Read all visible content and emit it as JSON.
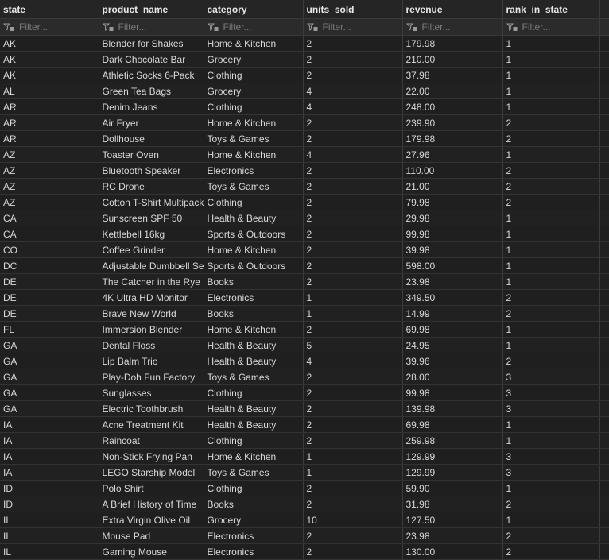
{
  "columns": [
    "state",
    "product_name",
    "category",
    "units_sold",
    "revenue",
    "rank_in_state"
  ],
  "filter": {
    "placeholder": "Filter...",
    "icon": "filter-icon"
  },
  "rows": [
    [
      "AK",
      "Blender for Shakes",
      "Home & Kitchen",
      "2",
      "179.98",
      "1"
    ],
    [
      "AK",
      "Dark Chocolate Bar",
      "Grocery",
      "2",
      "210.00",
      "1"
    ],
    [
      "AK",
      "Athletic Socks 6-Pack",
      "Clothing",
      "2",
      "37.98",
      "1"
    ],
    [
      "AL",
      "Green Tea Bags",
      "Grocery",
      "4",
      "22.00",
      "1"
    ],
    [
      "AR",
      "Denim Jeans",
      "Clothing",
      "4",
      "248.00",
      "1"
    ],
    [
      "AR",
      "Air Fryer",
      "Home & Kitchen",
      "2",
      "239.90",
      "2"
    ],
    [
      "AR",
      "Dollhouse",
      "Toys & Games",
      "2",
      "179.98",
      "2"
    ],
    [
      "AZ",
      "Toaster Oven",
      "Home & Kitchen",
      "4",
      "27.96",
      "1"
    ],
    [
      "AZ",
      "Bluetooth Speaker",
      "Electronics",
      "2",
      "110.00",
      "2"
    ],
    [
      "AZ",
      "RC Drone",
      "Toys & Games",
      "2",
      "21.00",
      "2"
    ],
    [
      "AZ",
      "Cotton T-Shirt Multipack",
      "Clothing",
      "2",
      "79.98",
      "2"
    ],
    [
      "CA",
      "Sunscreen SPF 50",
      "Health & Beauty",
      "2",
      "29.98",
      "1"
    ],
    [
      "CA",
      "Kettlebell 16kg",
      "Sports & Outdoors",
      "2",
      "99.98",
      "1"
    ],
    [
      "CO",
      "Coffee Grinder",
      "Home & Kitchen",
      "2",
      "39.98",
      "1"
    ],
    [
      "DC",
      "Adjustable Dumbbell Set",
      "Sports & Outdoors",
      "2",
      "598.00",
      "1"
    ],
    [
      "DE",
      "The Catcher in the Rye",
      "Books",
      "2",
      "23.98",
      "1"
    ],
    [
      "DE",
      "4K Ultra HD Monitor",
      "Electronics",
      "1",
      "349.50",
      "2"
    ],
    [
      "DE",
      "Brave New World",
      "Books",
      "1",
      "14.99",
      "2"
    ],
    [
      "FL",
      "Immersion Blender",
      "Home & Kitchen",
      "2",
      "69.98",
      "1"
    ],
    [
      "GA",
      "Dental Floss",
      "Health & Beauty",
      "5",
      "24.95",
      "1"
    ],
    [
      "GA",
      "Lip Balm Trio",
      "Health & Beauty",
      "4",
      "39.96",
      "2"
    ],
    [
      "GA",
      "Play-Doh Fun Factory",
      "Toys & Games",
      "2",
      "28.00",
      "3"
    ],
    [
      "GA",
      "Sunglasses",
      "Clothing",
      "2",
      "99.98",
      "3"
    ],
    [
      "GA",
      "Electric Toothbrush",
      "Health & Beauty",
      "2",
      "139.98",
      "3"
    ],
    [
      "IA",
      "Acne Treatment Kit",
      "Health & Beauty",
      "2",
      "69.98",
      "1"
    ],
    [
      "IA",
      "Raincoat",
      "Clothing",
      "2",
      "259.98",
      "1"
    ],
    [
      "IA",
      "Non-Stick Frying Pan",
      "Home & Kitchen",
      "1",
      "129.99",
      "3"
    ],
    [
      "IA",
      "LEGO Starship Model",
      "Toys & Games",
      "1",
      "129.99",
      "3"
    ],
    [
      "ID",
      "Polo Shirt",
      "Clothing",
      "2",
      "59.90",
      "1"
    ],
    [
      "ID",
      "A Brief History of Time",
      "Books",
      "2",
      "31.98",
      "2"
    ],
    [
      "IL",
      "Extra Virgin Olive Oil",
      "Grocery",
      "10",
      "127.50",
      "1"
    ],
    [
      "IL",
      "Mouse Pad",
      "Electronics",
      "2",
      "23.98",
      "2"
    ],
    [
      "IL",
      "Gaming Mouse",
      "Electronics",
      "2",
      "130.00",
      "2"
    ]
  ]
}
